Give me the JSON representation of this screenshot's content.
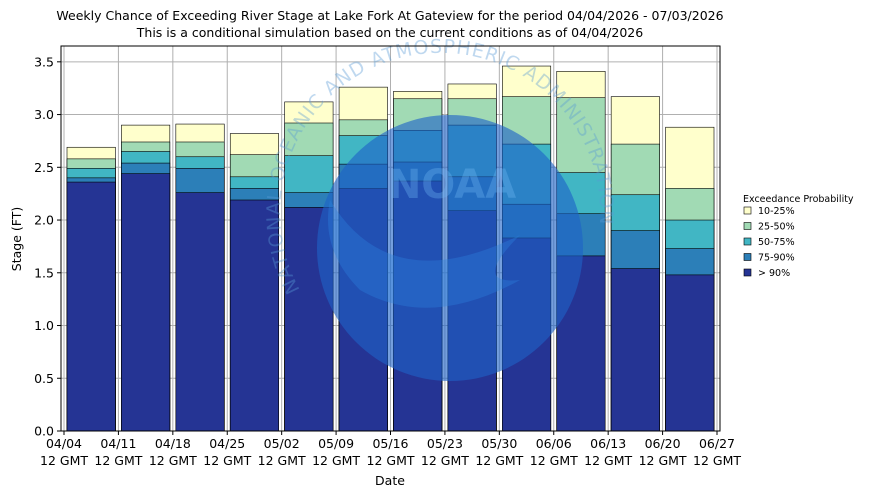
{
  "chart_data": {
    "type": "bar",
    "stacked": true,
    "title_lines": [
      "Weekly Chance of Exceeding River Stage at Lake Fork At Gateview for the period 04/04/2026 - 07/03/2026",
      "This is a conditional simulation based on the current conditions as of 04/04/2026"
    ],
    "xlabel": "Date",
    "ylabel": "Stage (FT)",
    "ylim": [
      0,
      3.65
    ],
    "yticks": [
      "0.0",
      "0.5",
      "1.0",
      "1.5",
      "2.0",
      "2.5",
      "3.0",
      "3.5"
    ],
    "ytick_values": [
      0,
      0.5,
      1.0,
      1.5,
      2.0,
      2.5,
      3.0,
      3.5
    ],
    "xticks": [
      {
        "date": "04/04",
        "time": "12 GMT"
      },
      {
        "date": "04/11",
        "time": "12 GMT"
      },
      {
        "date": "04/18",
        "time": "12 GMT"
      },
      {
        "date": "04/25",
        "time": "12 GMT"
      },
      {
        "date": "05/02",
        "time": "12 GMT"
      },
      {
        "date": "05/09",
        "time": "12 GMT"
      },
      {
        "date": "05/16",
        "time": "12 GMT"
      },
      {
        "date": "05/23",
        "time": "12 GMT"
      },
      {
        "date": "05/30",
        "time": "12 GMT"
      },
      {
        "date": "06/06",
        "time": "12 GMT"
      },
      {
        "date": "06/13",
        "time": "12 GMT"
      },
      {
        "date": "06/20",
        "time": "12 GMT"
      },
      {
        "date": "06/27",
        "time": "12 GMT"
      }
    ],
    "grid": true,
    "legend_title": "Exceedance Probability",
    "legend_position": "right",
    "series": [
      {
        "name": "10-25%",
        "color": "#ffffcc",
        "tops": [
          2.69,
          2.9,
          2.91,
          2.82,
          3.12,
          3.26,
          3.22,
          3.29,
          3.46,
          3.41,
          3.17,
          2.88
        ]
      },
      {
        "name": "25-50%",
        "color": "#a1dab4",
        "tops": [
          2.58,
          2.74,
          2.74,
          2.62,
          2.92,
          2.95,
          3.15,
          3.15,
          3.17,
          3.16,
          2.72,
          2.3
        ]
      },
      {
        "name": "50-75%",
        "color": "#41b6c4",
        "tops": [
          2.49,
          2.65,
          2.6,
          2.41,
          2.61,
          2.8,
          2.85,
          2.9,
          2.72,
          2.45,
          2.24,
          2.0
        ]
      },
      {
        "name": "75-90%",
        "color": "#2c7fb8",
        "tops": [
          2.4,
          2.54,
          2.49,
          2.3,
          2.26,
          2.53,
          2.55,
          2.41,
          2.15,
          2.06,
          1.9,
          1.73
        ]
      },
      {
        "name": "> 90%",
        "color": "#253494",
        "tops": [
          2.36,
          2.44,
          2.26,
          2.19,
          2.12,
          2.3,
          2.37,
          2.09,
          1.83,
          1.66,
          1.54,
          1.48
        ]
      }
    ]
  },
  "watermark": {
    "text": "NOAA",
    "ring_text": "NATIONAL OCEANIC AND ATMOSPHERIC ADMINISTRATION",
    "color": "#1565c0"
  }
}
